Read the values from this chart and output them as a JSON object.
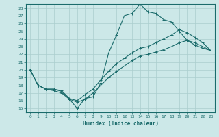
{
  "xlabel": "Humidex (Indice chaleur)",
  "xlim": [
    -0.5,
    23.5
  ],
  "ylim": [
    14.5,
    28.5
  ],
  "xticks": [
    0,
    1,
    2,
    3,
    4,
    5,
    6,
    7,
    8,
    9,
    10,
    11,
    12,
    13,
    14,
    15,
    16,
    17,
    18,
    19,
    20,
    21,
    22,
    23
  ],
  "yticks": [
    15,
    16,
    17,
    18,
    19,
    20,
    21,
    22,
    23,
    24,
    25,
    26,
    27,
    28
  ],
  "background_color": "#cce8e8",
  "grid_color": "#aacece",
  "line_color": "#1a6b6b",
  "line1_x": [
    0,
    1,
    2,
    3,
    4,
    5,
    6,
    7,
    8,
    9,
    10,
    11,
    12,
    13,
    14,
    15,
    16,
    17,
    18,
    19,
    20,
    21,
    22,
    23
  ],
  "line1_y": [
    20.0,
    18.0,
    17.5,
    17.5,
    17.2,
    16.2,
    15.0,
    16.3,
    16.5,
    18.3,
    22.2,
    24.5,
    27.0,
    27.3,
    28.5,
    27.5,
    27.3,
    26.5,
    26.2,
    25.0,
    23.8,
    23.2,
    22.8,
    22.5
  ],
  "line2_x": [
    0,
    1,
    2,
    3,
    4,
    5,
    6,
    7,
    8,
    9,
    10,
    11,
    12,
    13,
    14,
    15,
    16,
    17,
    18,
    19,
    20,
    21,
    22,
    23
  ],
  "line2_y": [
    20.0,
    18.0,
    17.5,
    17.5,
    17.3,
    16.3,
    16.0,
    16.8,
    17.5,
    18.7,
    19.8,
    20.8,
    21.5,
    22.2,
    22.8,
    23.0,
    23.5,
    24.0,
    24.5,
    25.2,
    24.8,
    24.2,
    23.5,
    22.5
  ],
  "line3_x": [
    0,
    1,
    2,
    3,
    4,
    5,
    6,
    7,
    8,
    9,
    10,
    11,
    12,
    13,
    14,
    15,
    16,
    17,
    18,
    19,
    20,
    21,
    22,
    23
  ],
  "line3_y": [
    20.0,
    18.0,
    17.5,
    17.3,
    17.0,
    16.2,
    15.8,
    16.2,
    17.0,
    18.0,
    19.0,
    19.8,
    20.5,
    21.2,
    21.8,
    22.0,
    22.3,
    22.6,
    23.0,
    23.5,
    23.8,
    23.5,
    23.0,
    22.5
  ]
}
